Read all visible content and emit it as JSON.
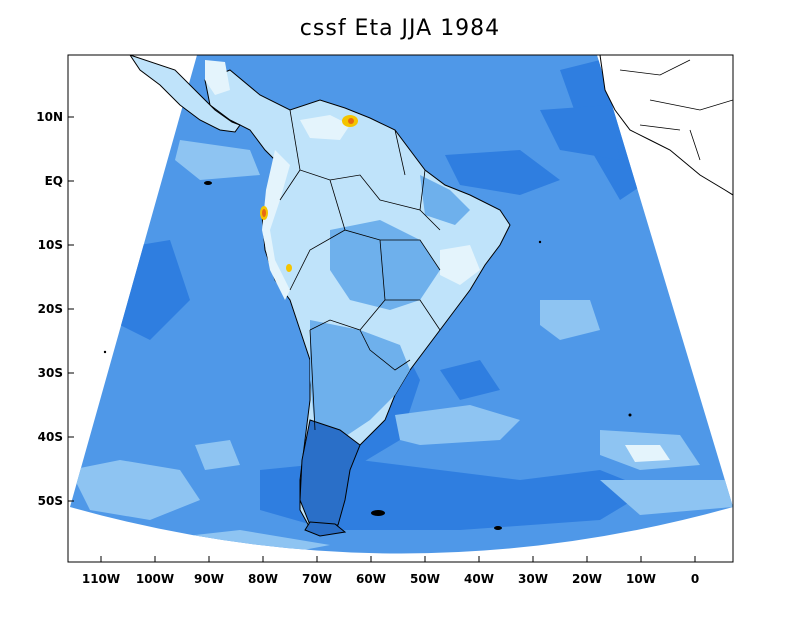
{
  "title": "cssf Eta JJA 1984",
  "axes": {
    "lat_ticks": [
      {
        "label": "10N",
        "value": 10
      },
      {
        "label": "EQ",
        "value": 0
      },
      {
        "label": "10S",
        "value": -10
      },
      {
        "label": "20S",
        "value": -20
      },
      {
        "label": "30S",
        "value": -30
      },
      {
        "label": "40S",
        "value": -40
      },
      {
        "label": "50S",
        "value": -50
      }
    ],
    "lon_ticks": [
      {
        "label": "110W",
        "value": -110
      },
      {
        "label": "100W",
        "value": -100
      },
      {
        "label": "90W",
        "value": -90
      },
      {
        "label": "80W",
        "value": -80
      },
      {
        "label": "70W",
        "value": -70
      },
      {
        "label": "60W",
        "value": -60
      },
      {
        "label": "50W",
        "value": -50
      },
      {
        "label": "40W",
        "value": -40
      },
      {
        "label": "30W",
        "value": -30
      },
      {
        "label": "20W",
        "value": -20
      },
      {
        "label": "10W",
        "value": -10
      },
      {
        "label": "0",
        "value": 0
      }
    ]
  },
  "colors": {
    "ocean_base": "#4f98e8",
    "ocean_dark": "#2f7ee0",
    "ocean_light": "#8ec4f2",
    "land_light": "#bfe3fa",
    "land_pale": "#e4f4fc",
    "land_mid": "#6eb0ec",
    "land_dark": "#2a6fc8",
    "hot_yellow": "#f4c400",
    "hot_orange": "#e86a10",
    "coast": "#000000"
  }
}
